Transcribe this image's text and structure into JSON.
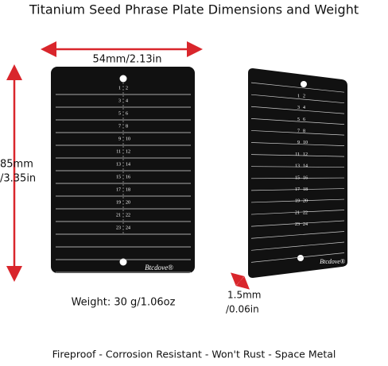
{
  "title": "Titanium Seed Phrase Plate Dimensions and Weight",
  "width_label": "54mm/2.13in",
  "height_label": [
    "85mm",
    "/3.35in"
  ],
  "weight": "Weight: 30 g/1.06oz",
  "thickness_label": [
    "1.5mm",
    "/0.06in"
  ],
  "brand": "Btcdove®",
  "footer": "Fireproof - Corrosion Resistant - Won't Rust - Space Metal",
  "plate_numbers": [
    [
      "1",
      "2"
    ],
    [
      "3",
      "4"
    ],
    [
      "5",
      "6"
    ],
    [
      "7",
      "8"
    ],
    [
      "9",
      "10"
    ],
    [
      "11",
      "12"
    ],
    [
      "13",
      "14"
    ],
    [
      "15",
      "16"
    ],
    [
      "17",
      "18"
    ],
    [
      "19",
      "20"
    ],
    [
      "21",
      "22"
    ],
    [
      "23",
      "24"
    ]
  ]
}
